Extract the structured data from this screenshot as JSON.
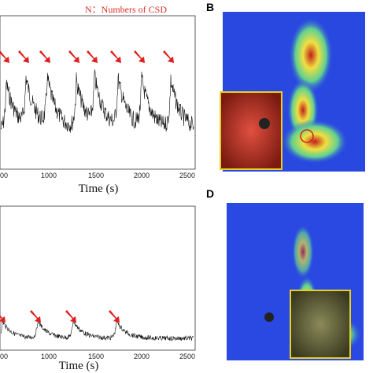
{
  "top_plot": {
    "legend": "N：Numbers of CSD",
    "xticks": [
      "00",
      "1000",
      "1500",
      "2000",
      "2500"
    ],
    "xlabel": "Time (s)"
  },
  "bottom_plot": {
    "xticks": [
      "00",
      "1000",
      "1500",
      "2000",
      "2500"
    ],
    "xlabel": "Time (s)"
  },
  "panels": [
    {
      "label": "B"
    },
    {
      "label": "D"
    }
  ]
}
